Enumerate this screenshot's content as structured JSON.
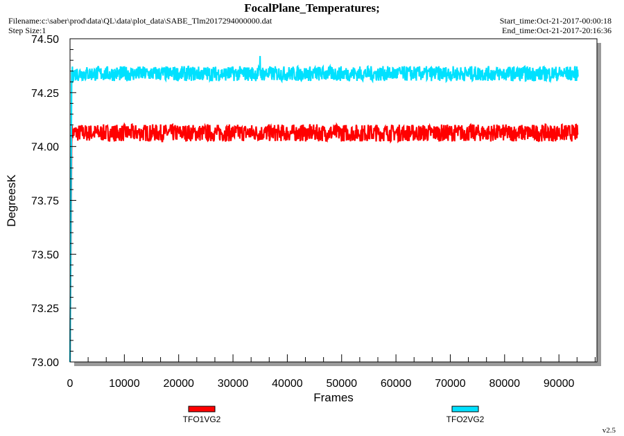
{
  "header": {
    "title": "FocalPlane_Temperatures;",
    "filename": "Filename:c:\\saber\\prod\\data\\QL\\data\\plot_data\\SABE_Tlm2017294000000.dat",
    "step_size": "Step Size:1",
    "start_time": "Start_time:Oct-21-2017-00:00:18",
    "end_time": "End_time:Oct-21-2017-20:16:36"
  },
  "footer": {
    "version": "v2.5"
  },
  "colors": {
    "frame_shadow": "#9a9a9a",
    "axis": "#000000"
  },
  "chart_data": {
    "type": "line",
    "title": "FocalPlane_Temperatures;",
    "xlabel": "Frames",
    "ylabel": "DegreesK",
    "xlim": [
      0,
      97000
    ],
    "ylim": [
      73.0,
      74.5
    ],
    "xticks": [
      0,
      10000,
      20000,
      30000,
      40000,
      50000,
      60000,
      70000,
      80000,
      90000
    ],
    "xtick_labels": [
      "0",
      "10000",
      "20000",
      "30000",
      "40000",
      "50000",
      "60000",
      "70000",
      "80000",
      "90000"
    ],
    "yticks": [
      73.0,
      73.25,
      73.5,
      73.75,
      74.0,
      74.25,
      74.5
    ],
    "ytick_labels": [
      "73.00",
      "73.25",
      "73.50",
      "73.75",
      "74.00",
      "74.25",
      "74.50"
    ],
    "grid": false,
    "legend_position": "bottom",
    "series": [
      {
        "name": "TFO1VG2",
        "color": "#ff0000",
        "x_start": 300,
        "x_end": 93500,
        "mean": 74.063,
        "noise_amplitude": 0.04,
        "initial_value": 73.0
      },
      {
        "name": "TFO2VG2",
        "color": "#00e1ff",
        "x_start": 300,
        "x_end": 93500,
        "mean": 74.338,
        "noise_amplitude": 0.035,
        "initial_value": 73.0,
        "spike": {
          "x": 35000,
          "y": 74.42
        }
      }
    ]
  }
}
